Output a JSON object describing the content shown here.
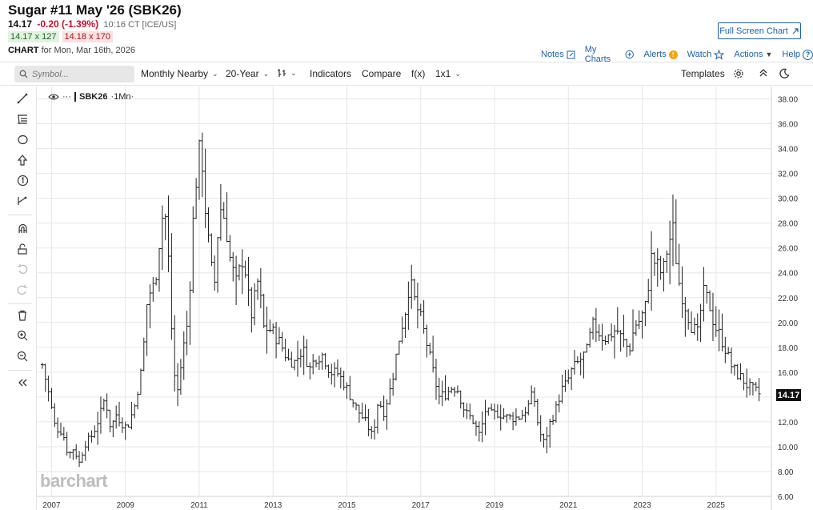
{
  "header": {
    "title": "Sugar #11 May '26 (SBK26)",
    "last": "14.17",
    "change": "-0.20 (-1.39%)",
    "time": "10:16 CT [ICE/US]",
    "bid": "14.17 x 127",
    "ask": "14.18 x 170",
    "chart_label": "CHART",
    "chart_date": "for Mon, Mar 16th, 2026",
    "fullscreen_label": "Full Screen Chart"
  },
  "links": {
    "notes": "Notes",
    "my_charts": "My Charts",
    "alerts": "Alerts",
    "watch": "Watch",
    "actions": "Actions",
    "help": "Help"
  },
  "toolbar": {
    "symbol_placeholder": "Symbol...",
    "period": "Monthly Nearby",
    "range": "20-Year",
    "indicators": "Indicators",
    "compare": "Compare",
    "fx": "f(x)",
    "layout": "1x1",
    "templates": "Templates"
  },
  "left_tools": [
    "trend-line-icon",
    "fib-icon",
    "shape-icon",
    "arrow-up-icon",
    "counter-icon",
    "measure-icon",
    "magnet-icon",
    "lock-icon",
    "undo-icon",
    "redo-icon",
    "trash-icon",
    "zoom-in-icon",
    "zoom-out-icon",
    "collapse-icon"
  ],
  "legend": {
    "symbol": "SBK26",
    "interval": "·1Mn·"
  },
  "watermark": "barchart",
  "colors": {
    "link": "#1c5fa5",
    "down": "#c8102e",
    "bars": "#222222",
    "grid": "#e6e6e6"
  },
  "chart_data": {
    "type": "ohlc",
    "title": "Sugar #11 May '26 (SBK26)",
    "interval": "Monthly",
    "last_price": 14.17,
    "ylim": [
      6,
      39
    ],
    "yticks": [
      6,
      8,
      10,
      12,
      14,
      16,
      18,
      20,
      22,
      24,
      26,
      28,
      30,
      32,
      34,
      36,
      38
    ],
    "ytick_labels": [
      "6.00",
      "8.00",
      "10.00",
      "12.00",
      "14.00",
      "16.00",
      "18.00",
      "20.00",
      "22.00",
      "24.00",
      "26.00",
      "28.00",
      "30.00",
      "32.00",
      "34.00",
      "36.00",
      "38.00"
    ],
    "xlim": [
      2006.6,
      2026.5
    ],
    "xticks": [
      2007,
      2009,
      2011,
      2013,
      2015,
      2017,
      2019,
      2021,
      2023,
      2025
    ],
    "xtick_labels": [
      "2007",
      "2009",
      "2011",
      "2013",
      "2015",
      "2017",
      "2019",
      "2021",
      "2023",
      "2025"
    ],
    "grid": true,
    "close_anchors": [
      [
        2006.75,
        16.6
      ],
      [
        2006.9,
        14.6
      ],
      [
        2007.1,
        11.5
      ],
      [
        2007.3,
        11.2
      ],
      [
        2007.45,
        9.3
      ],
      [
        2007.6,
        9.9
      ],
      [
        2007.75,
        8.7
      ],
      [
        2007.9,
        10.2
      ],
      [
        2008.1,
        10.9
      ],
      [
        2008.3,
        12.4
      ],
      [
        2008.45,
        14.0
      ],
      [
        2008.6,
        11.5
      ],
      [
        2008.75,
        12.6
      ],
      [
        2008.9,
        11.9
      ],
      [
        2009.05,
        11.5
      ],
      [
        2009.25,
        13.3
      ],
      [
        2009.45,
        16.4
      ],
      [
        2009.6,
        22.1
      ],
      [
        2009.8,
        23.1
      ],
      [
        2009.95,
        27.4
      ],
      [
        2010.05,
        29.6
      ],
      [
        2010.15,
        26.2
      ],
      [
        2010.3,
        16.2
      ],
      [
        2010.42,
        14.5
      ],
      [
        2010.55,
        17.6
      ],
      [
        2010.7,
        20.3
      ],
      [
        2010.85,
        29.1
      ],
      [
        2010.95,
        32.6
      ],
      [
        2011.05,
        34.8
      ],
      [
        2011.12,
        30.6
      ],
      [
        2011.25,
        26.5
      ],
      [
        2011.4,
        22.5
      ],
      [
        2011.55,
        29.4
      ],
      [
        2011.7,
        28.3
      ],
      [
        2011.85,
        24.8
      ],
      [
        2012.0,
        23.2
      ],
      [
        2012.2,
        25.4
      ],
      [
        2012.4,
        20.4
      ],
      [
        2012.6,
        23.5
      ],
      [
        2012.75,
        19.6
      ],
      [
        2012.95,
        19.4
      ],
      [
        2013.2,
        18.3
      ],
      [
        2013.4,
        17.0
      ],
      [
        2013.6,
        16.8
      ],
      [
        2013.8,
        17.9
      ],
      [
        2014.0,
        16.3
      ],
      [
        2014.15,
        17.2
      ],
      [
        2014.35,
        17.4
      ],
      [
        2014.55,
        16.0
      ],
      [
        2014.75,
        15.9
      ],
      [
        2014.95,
        15.0
      ],
      [
        2015.15,
        13.7
      ],
      [
        2015.3,
        12.9
      ],
      [
        2015.5,
        12.0
      ],
      [
        2015.7,
        10.8
      ],
      [
        2015.85,
        13.8
      ],
      [
        2016.0,
        12.8
      ],
      [
        2016.2,
        14.9
      ],
      [
        2016.4,
        18.5
      ],
      [
        2016.6,
        21.2
      ],
      [
        2016.7,
        23.4
      ],
      [
        2016.85,
        21.6
      ],
      [
        2017.0,
        20.3
      ],
      [
        2017.15,
        18.5
      ],
      [
        2017.35,
        15.8
      ],
      [
        2017.5,
        14.0
      ],
      [
        2017.7,
        14.3
      ],
      [
        2017.85,
        14.8
      ],
      [
        2018.0,
        14.6
      ],
      [
        2018.2,
        12.8
      ],
      [
        2018.4,
        12.2
      ],
      [
        2018.6,
        10.9
      ],
      [
        2018.75,
        12.9
      ],
      [
        2018.9,
        12.6
      ],
      [
        2019.1,
        12.7
      ],
      [
        2019.3,
        12.4
      ],
      [
        2019.5,
        12.3
      ],
      [
        2019.7,
        12.4
      ],
      [
        2019.9,
        13.2
      ],
      [
        2020.05,
        14.4
      ],
      [
        2020.2,
        11.3
      ],
      [
        2020.35,
        10.3
      ],
      [
        2020.5,
        11.9
      ],
      [
        2020.65,
        12.9
      ],
      [
        2020.8,
        14.5
      ],
      [
        2020.95,
        15.1
      ],
      [
        2021.1,
        16.2
      ],
      [
        2021.3,
        16.9
      ],
      [
        2021.5,
        17.7
      ],
      [
        2021.65,
        19.8
      ],
      [
        2021.8,
        19.3
      ],
      [
        2021.95,
        18.7
      ],
      [
        2022.1,
        18.9
      ],
      [
        2022.3,
        19.5
      ],
      [
        2022.5,
        18.4
      ],
      [
        2022.65,
        17.8
      ],
      [
        2022.8,
        19.8
      ],
      [
        2022.95,
        20.2
      ],
      [
        2023.1,
        21.4
      ],
      [
        2023.25,
        25.2
      ],
      [
        2023.4,
        24.6
      ],
      [
        2023.55,
        23.8
      ],
      [
        2023.7,
        26.3
      ],
      [
        2023.85,
        27.6
      ],
      [
        2023.95,
        23.9
      ],
      [
        2024.05,
        22.5
      ],
      [
        2024.2,
        21.0
      ],
      [
        2024.35,
        19.6
      ],
      [
        2024.5,
        19.1
      ],
      [
        2024.65,
        22.4
      ],
      [
        2024.8,
        21.7
      ],
      [
        2024.95,
        19.8
      ],
      [
        2025.1,
        19.0
      ],
      [
        2025.25,
        17.9
      ],
      [
        2025.4,
        16.6
      ],
      [
        2025.55,
        15.9
      ],
      [
        2025.7,
        15.5
      ],
      [
        2025.85,
        14.9
      ],
      [
        2025.95,
        14.7
      ],
      [
        2026.1,
        14.4
      ],
      [
        2026.2,
        14.17
      ]
    ]
  }
}
